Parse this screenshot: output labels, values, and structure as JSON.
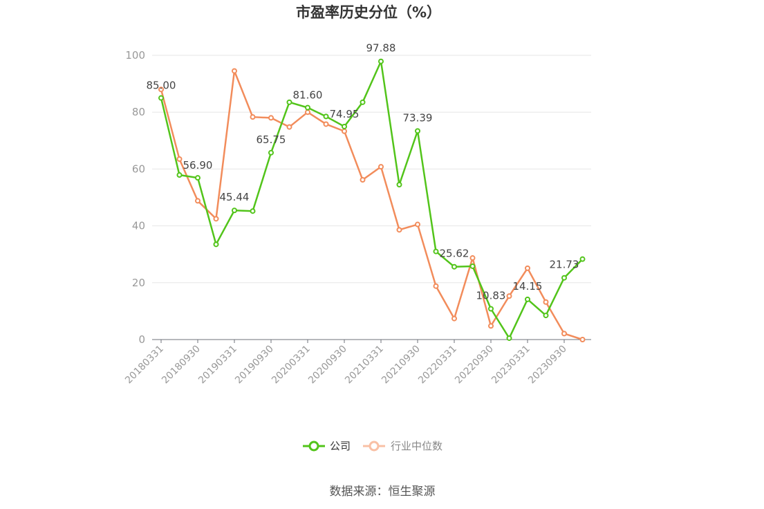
{
  "chart_data": {
    "type": "line",
    "title": "市盈率历史分位（%）",
    "ylim": [
      0,
      100
    ],
    "yticks": [
      0,
      20,
      40,
      60,
      80,
      100
    ],
    "x_tick_labels": [
      "20180331",
      "20180930",
      "20190331",
      "20190930",
      "20200331",
      "20200930",
      "20210331",
      "20210930",
      "20220331",
      "20220930",
      "20230331",
      "20230930"
    ],
    "x": [
      "20180331",
      "20180630",
      "20180930",
      "20181231",
      "20190331",
      "20190630",
      "20190930",
      "20191231",
      "20200331",
      "20200630",
      "20200930",
      "20201231",
      "20210331",
      "20210630",
      "20210930",
      "20211231",
      "20220331",
      "20220630",
      "20220930",
      "20221231",
      "20230331",
      "20230630",
      "20230930",
      "20231231"
    ],
    "series": [
      {
        "name": "公司",
        "color": "#52c41a",
        "values": [
          85.0,
          57.9,
          56.9,
          33.5,
          45.44,
          45.2,
          65.75,
          83.5,
          81.6,
          78.5,
          74.95,
          83.5,
          97.88,
          54.5,
          73.39,
          31.0,
          25.62,
          25.8,
          10.83,
          0.5,
          14.15,
          8.5,
          21.73,
          28.3
        ],
        "labels": [
          "85.00",
          null,
          "56.90",
          null,
          "45.44",
          null,
          "65.75",
          null,
          "81.60",
          null,
          "74.95",
          null,
          "97.88",
          null,
          "73.39",
          null,
          "25.62",
          null,
          "10.83",
          null,
          "14.15",
          null,
          "21.73",
          null
        ]
      },
      {
        "name": "行业中位数",
        "color": "#f28c5b",
        "values": [
          88.0,
          63.5,
          48.8,
          42.5,
          94.5,
          78.3,
          78.0,
          74.8,
          80.0,
          75.8,
          73.3,
          56.2,
          60.8,
          38.6,
          40.5,
          18.8,
          7.4,
          28.7,
          4.8,
          15.3,
          25.1,
          13.2,
          2.1,
          0.0
        ],
        "labels": []
      }
    ],
    "legend": {
      "placement": "bottom-center"
    },
    "grid": true
  },
  "footer": {
    "source": "数据来源：恒生聚源"
  }
}
